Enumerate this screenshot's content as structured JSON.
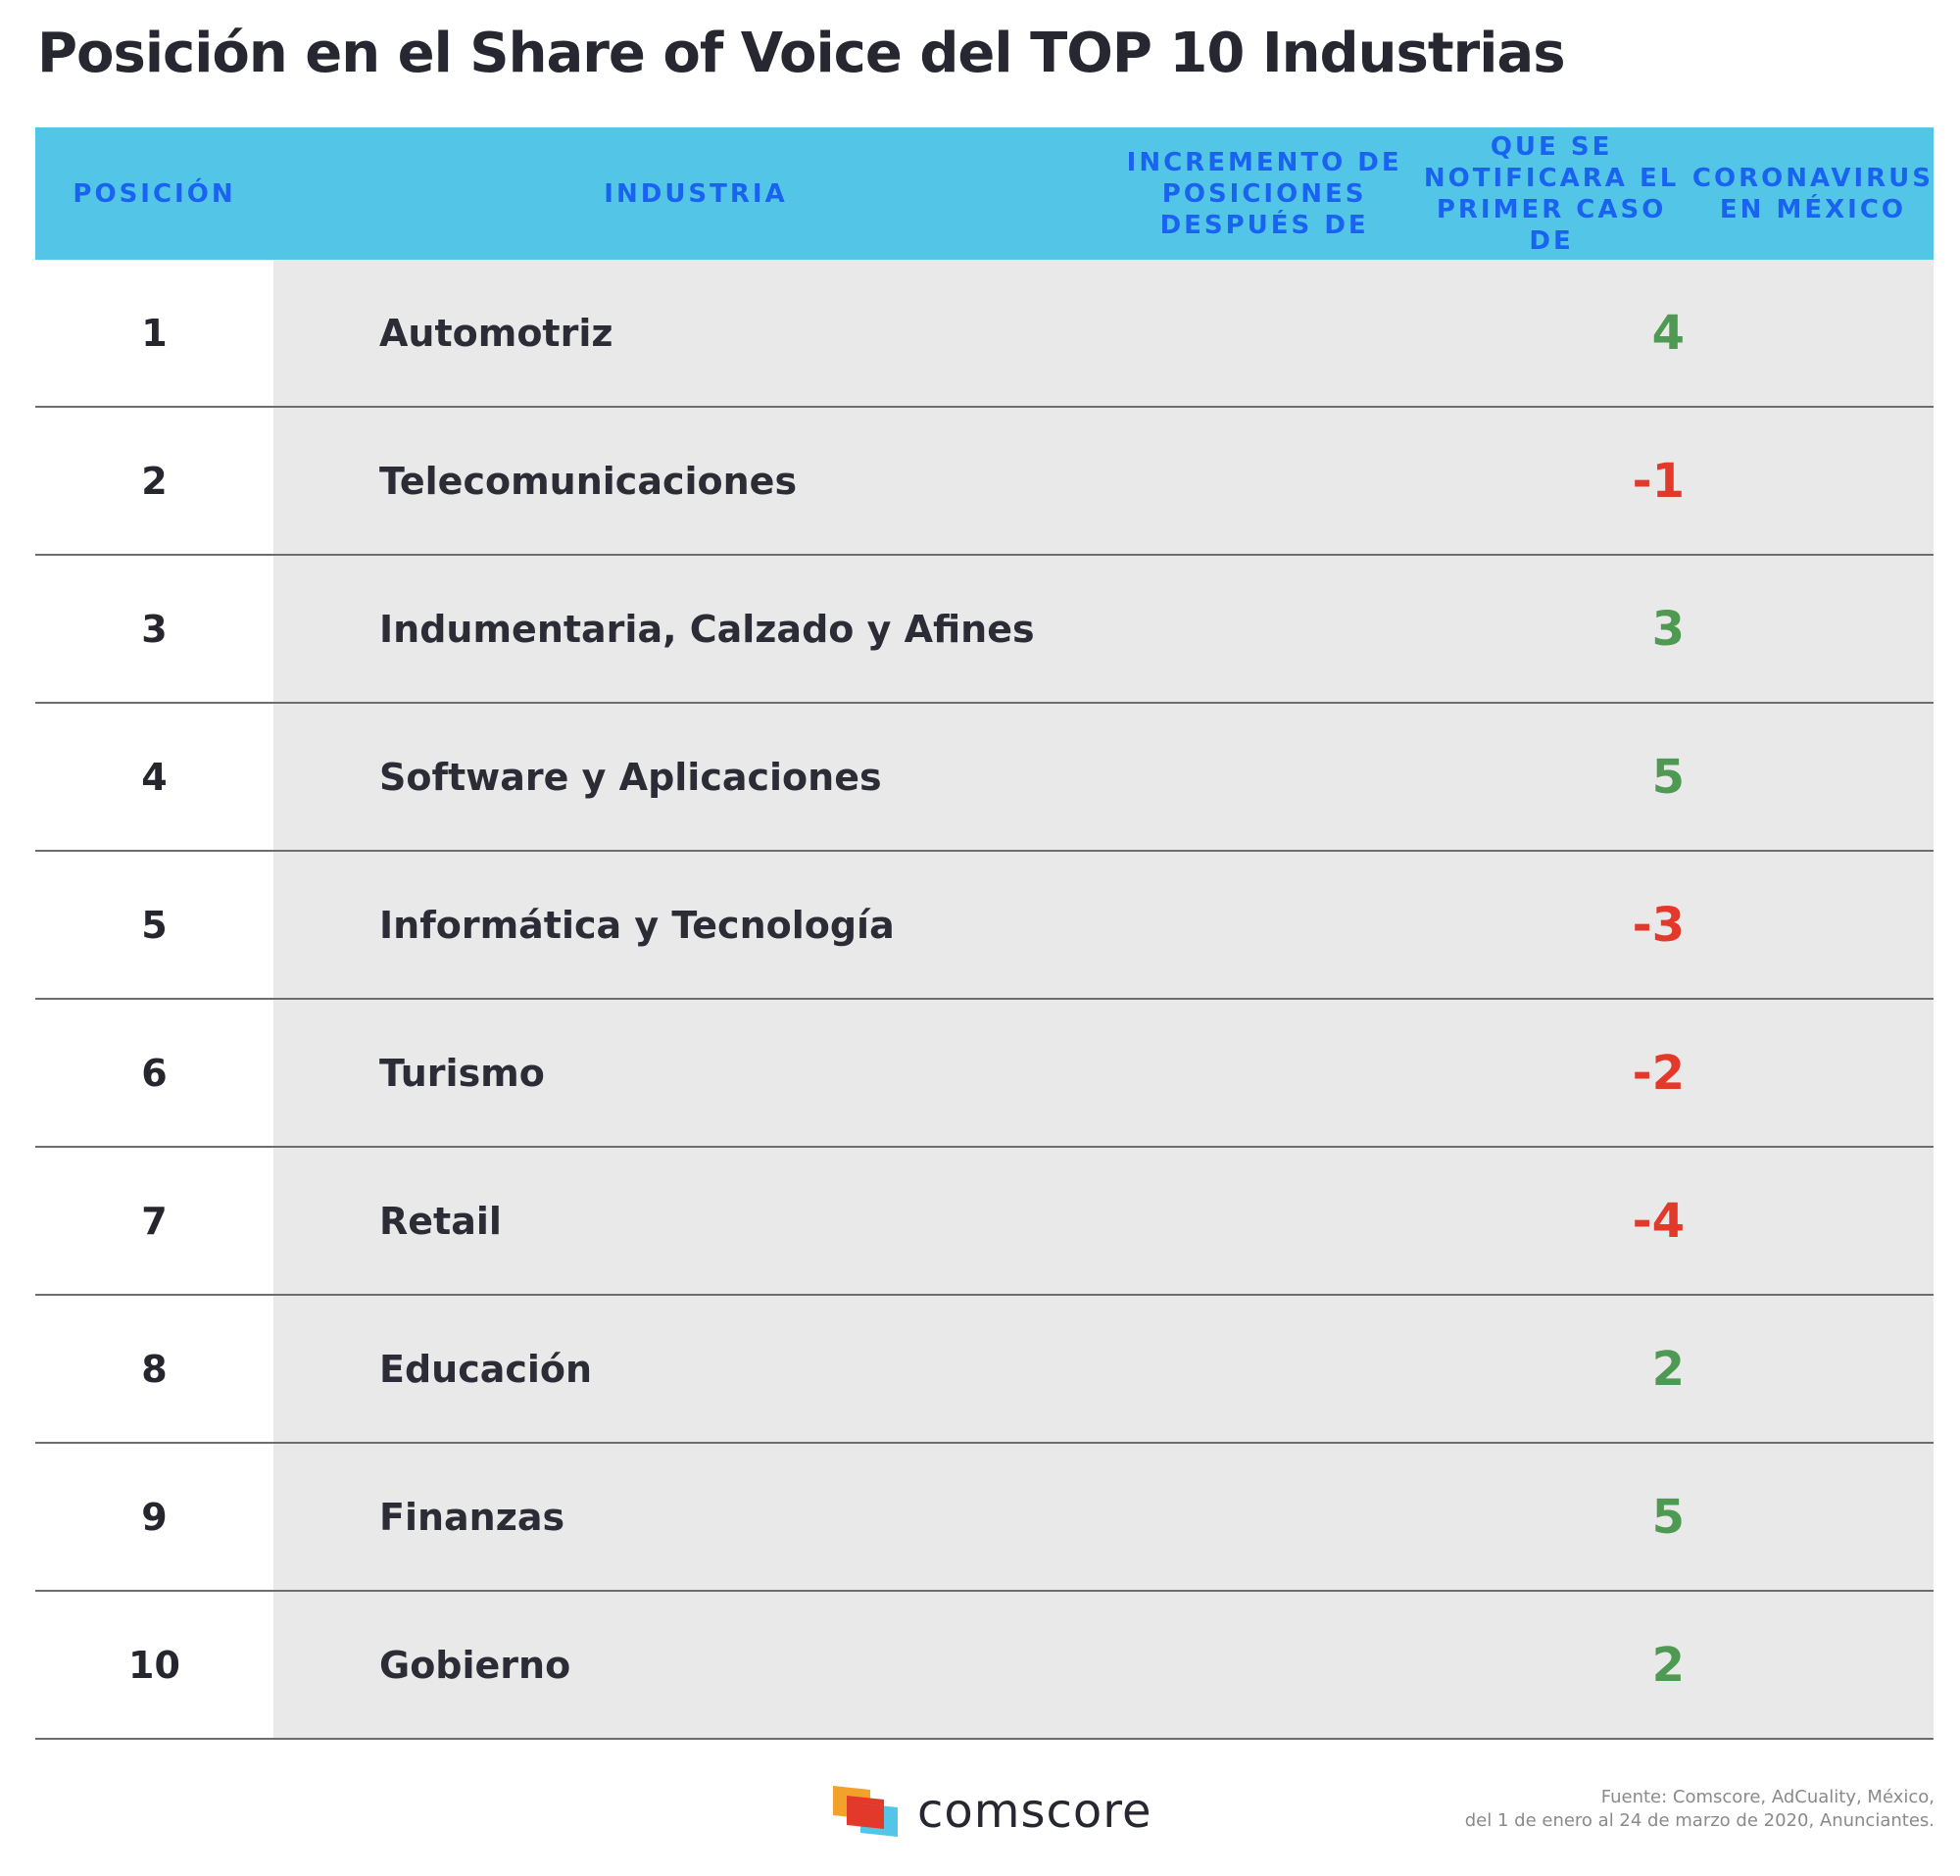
{
  "title": "Posición en el Share of Voice del TOP 10 Industrias",
  "chart_data": {
    "type": "table",
    "columns": [
      "POSICIÓN",
      "INDUSTRIA",
      "INCREMENTO DE POSICIONES DESPUÉS DE QUE SE NOTIFICARA EL PRIMER CASO DE CORONAVIRUS EN MÉXICO"
    ],
    "rows": [
      {
        "position": "1",
        "industry": "Automotriz",
        "change": "4"
      },
      {
        "position": "2",
        "industry": "Telecomunicaciones",
        "change": "-1"
      },
      {
        "position": "3",
        "industry": "Indumentaria, Calzado y Afines",
        "change": "3"
      },
      {
        "position": "4",
        "industry": "Software y Aplicaciones",
        "change": "5"
      },
      {
        "position": "5",
        "industry": "Informática y Tecnología",
        "change": "-3"
      },
      {
        "position": "6",
        "industry": "Turismo",
        "change": "-2"
      },
      {
        "position": "7",
        "industry": "Retail",
        "change": "-4"
      },
      {
        "position": "8",
        "industry": "Educación",
        "change": "2"
      },
      {
        "position": "9",
        "industry": "Finanzas",
        "change": "5"
      },
      {
        "position": "10",
        "industry": "Gobierno",
        "change": "2"
      }
    ]
  },
  "header": {
    "col_position": "POSICIÓN",
    "col_industry": "INDUSTRIA",
    "col_increase_lines": [
      "INCREMENTO DE POSICIONES DESPUÉS DE",
      "QUE SE NOTIFICARA EL PRIMER CASO DE",
      "CORONAVIRUS EN MÉXICO"
    ]
  },
  "colors": {
    "header_bg": "#53c6e8",
    "header_text": "#1a63f0",
    "positive": "#4e9a52",
    "negative": "#e2392b",
    "row_bg": "#e9e9e9"
  },
  "footer": {
    "brand": "comscore",
    "source_line1": "Fuente: Comscore, AdCuality, México,",
    "source_line2": "del 1 de enero al 24 de marzo de 2020, Anunciantes."
  }
}
